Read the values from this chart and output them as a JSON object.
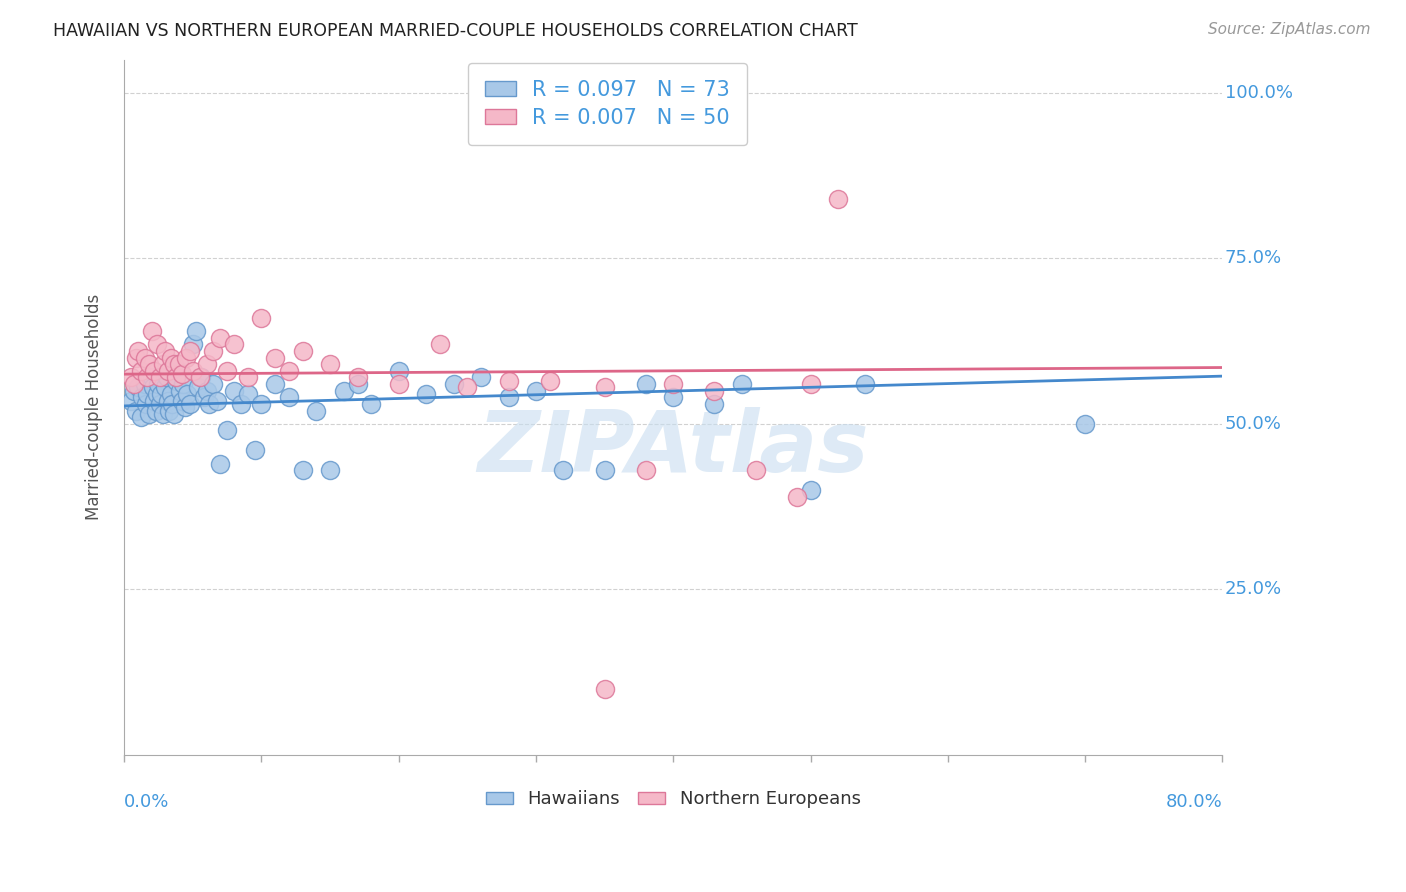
{
  "title": "HAWAIIAN VS NORTHERN EUROPEAN MARRIED-COUPLE HOUSEHOLDS CORRELATION CHART",
  "source": "Source: ZipAtlas.com",
  "ylabel": "Married-couple Households",
  "xmin": 0.0,
  "xmax": 0.8,
  "ymin": 0.0,
  "ymax": 1.05,
  "blue_color": "#a8c8e8",
  "blue_edge": "#6699cc",
  "pink_color": "#f5b8c8",
  "pink_edge": "#dd7799",
  "blue_line_color": "#4488cc",
  "pink_line_color": "#dd6688",
  "watermark_color": "#c8ddf0",
  "title_color": "#222222",
  "axis_label_color": "#4499dd",
  "grid_color": "#cccccc",
  "background_color": "#ffffff",
  "hawaiians_x": [
    0.005,
    0.007,
    0.009,
    0.01,
    0.012,
    0.013,
    0.015,
    0.016,
    0.017,
    0.018,
    0.02,
    0.021,
    0.022,
    0.023,
    0.024,
    0.025,
    0.026,
    0.027,
    0.028,
    0.03,
    0.031,
    0.032,
    0.033,
    0.034,
    0.035,
    0.036,
    0.038,
    0.04,
    0.041,
    0.042,
    0.043,
    0.044,
    0.046,
    0.048,
    0.05,
    0.052,
    0.054,
    0.056,
    0.058,
    0.06,
    0.062,
    0.065,
    0.068,
    0.07,
    0.075,
    0.08,
    0.085,
    0.09,
    0.095,
    0.1,
    0.11,
    0.12,
    0.13,
    0.14,
    0.15,
    0.16,
    0.17,
    0.18,
    0.2,
    0.22,
    0.24,
    0.26,
    0.28,
    0.3,
    0.32,
    0.35,
    0.38,
    0.4,
    0.43,
    0.45,
    0.5,
    0.54,
    0.7
  ],
  "hawaiians_y": [
    0.535,
    0.55,
    0.52,
    0.555,
    0.51,
    0.54,
    0.56,
    0.53,
    0.545,
    0.515,
    0.57,
    0.555,
    0.535,
    0.52,
    0.545,
    0.56,
    0.53,
    0.545,
    0.515,
    0.555,
    0.57,
    0.535,
    0.52,
    0.545,
    0.53,
    0.515,
    0.565,
    0.58,
    0.55,
    0.535,
    0.56,
    0.525,
    0.545,
    0.53,
    0.62,
    0.64,
    0.555,
    0.57,
    0.54,
    0.55,
    0.53,
    0.56,
    0.535,
    0.44,
    0.49,
    0.55,
    0.53,
    0.545,
    0.46,
    0.53,
    0.56,
    0.54,
    0.43,
    0.52,
    0.43,
    0.55,
    0.56,
    0.53,
    0.58,
    0.545,
    0.56,
    0.57,
    0.54,
    0.55,
    0.43,
    0.43,
    0.56,
    0.54,
    0.53,
    0.56,
    0.4,
    0.56,
    0.5
  ],
  "northern_x": [
    0.005,
    0.007,
    0.009,
    0.01,
    0.012,
    0.015,
    0.017,
    0.018,
    0.02,
    0.022,
    0.024,
    0.026,
    0.028,
    0.03,
    0.032,
    0.034,
    0.036,
    0.038,
    0.04,
    0.042,
    0.045,
    0.048,
    0.05,
    0.055,
    0.06,
    0.065,
    0.07,
    0.075,
    0.08,
    0.09,
    0.1,
    0.11,
    0.12,
    0.13,
    0.15,
    0.17,
    0.2,
    0.23,
    0.25,
    0.28,
    0.31,
    0.35,
    0.38,
    0.4,
    0.43,
    0.46,
    0.49,
    0.5,
    0.52,
    0.35
  ],
  "northern_y": [
    0.57,
    0.56,
    0.6,
    0.61,
    0.58,
    0.6,
    0.57,
    0.59,
    0.64,
    0.58,
    0.62,
    0.57,
    0.59,
    0.61,
    0.58,
    0.6,
    0.59,
    0.57,
    0.59,
    0.575,
    0.6,
    0.61,
    0.58,
    0.57,
    0.59,
    0.61,
    0.63,
    0.58,
    0.62,
    0.57,
    0.66,
    0.6,
    0.58,
    0.61,
    0.59,
    0.57,
    0.56,
    0.62,
    0.555,
    0.565,
    0.565,
    0.555,
    0.43,
    0.56,
    0.55,
    0.43,
    0.39,
    0.56,
    0.84,
    0.1
  ],
  "ytick_positions": [
    0.25,
    0.5,
    0.75,
    1.0
  ],
  "ytick_labels": [
    "25.0%",
    "50.0%",
    "75.0%",
    "100.0%"
  ]
}
